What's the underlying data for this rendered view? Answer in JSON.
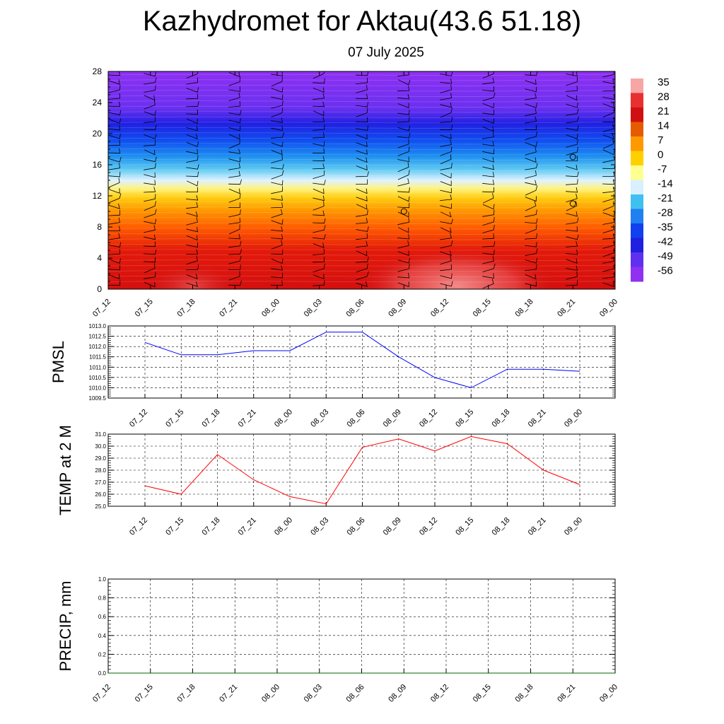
{
  "title": "Kazhydromet for Aktau(43.6 51.18)",
  "subtitle": "07 July 2025",
  "chart_data": [
    {
      "type": "heatmap",
      "description_free": true,
      "x_tick_labels": [
        "07_12",
        "07_15",
        "07_18",
        "07_21",
        "08_00",
        "08_03",
        "08_06",
        "08_09",
        "08_12",
        "08_15",
        "08_18",
        "08_21",
        "09_00"
      ],
      "y_ticks": [
        0,
        4,
        8,
        12,
        16,
        20,
        24,
        28
      ],
      "ylim": [
        0,
        28
      ],
      "colorbar_labels": [
        "35",
        "28",
        "21",
        "14",
        "7",
        "0",
        "-7",
        "-14",
        "-21",
        "-28",
        "-35",
        "-42",
        "-49",
        "-56"
      ],
      "colorbar_colors": [
        "#f7a6a6",
        "#e83030",
        "#d01010",
        "#e65a00",
        "#ff9900",
        "#ffd000",
        "#ffff90",
        "#d8f0ff",
        "#40c0f0",
        "#2080f0",
        "#1040f0",
        "#2020e0",
        "#6030f0",
        "#9030f0"
      ],
      "markers_circle": [
        {
          "x": "08_09",
          "y": 10
        },
        {
          "x": "08_21",
          "y": 17
        },
        {
          "x": "08_21",
          "y": 11
        }
      ]
    },
    {
      "type": "line",
      "ylabel": "PMSL",
      "x": [
        "07_12",
        "07_15",
        "07_18",
        "07_21",
        "08_00",
        "08_03",
        "08_06",
        "08_09",
        "08_12",
        "08_15",
        "08_18",
        "08_21",
        "09_00"
      ],
      "y_tick_labels": [
        "1013.0",
        "1012.5",
        "1012.0",
        "1011.5",
        "1011.0",
        "1010.5",
        "1010.0",
        "1009.5"
      ],
      "ylim": [
        1009.5,
        1013.0
      ],
      "series": [
        {
          "values": [
            1012.2,
            1011.6,
            1011.6,
            1011.8,
            1011.8,
            1012.7,
            1012.7,
            1011.5,
            1010.5,
            1010.0,
            1010.9,
            1010.9,
            1010.8
          ],
          "color": "#0000ff"
        }
      ]
    },
    {
      "type": "line",
      "ylabel": "TEMP at 2 M",
      "x": [
        "07_12",
        "07_15",
        "07_18",
        "07_21",
        "08_00",
        "08_03",
        "08_06",
        "08_09",
        "08_12",
        "08_15",
        "08_18",
        "08_21",
        "09_00"
      ],
      "y_tick_labels": [
        "31.0",
        "30.0",
        "29.0",
        "28.0",
        "27.0",
        "26.0",
        "25.0"
      ],
      "ylim": [
        25.0,
        31.0
      ],
      "series": [
        {
          "values": [
            26.7,
            26.0,
            29.3,
            27.2,
            25.8,
            25.2,
            29.9,
            30.6,
            29.6,
            30.8,
            30.2,
            28.0,
            26.8
          ],
          "color": "#ff0000"
        }
      ]
    },
    {
      "type": "line",
      "ylabel": "PRECIP, mm",
      "x_tick_labels": [
        "07_12",
        "07_15",
        "07_18",
        "07_21",
        "08_00",
        "08_03",
        "08_06",
        "08_09",
        "08_12",
        "08_15",
        "08_18",
        "08_21",
        "09_00"
      ],
      "y_tick_labels": [
        "1.0",
        "0.8",
        "0.6",
        "0.4",
        "0.2",
        "0.0"
      ],
      "ylim": [
        0.0,
        1.0
      ],
      "series": [
        {
          "values": [
            0,
            0,
            0,
            0,
            0,
            0,
            0,
            0,
            0,
            0,
            0,
            0,
            0
          ],
          "color": "#006400"
        }
      ]
    }
  ]
}
